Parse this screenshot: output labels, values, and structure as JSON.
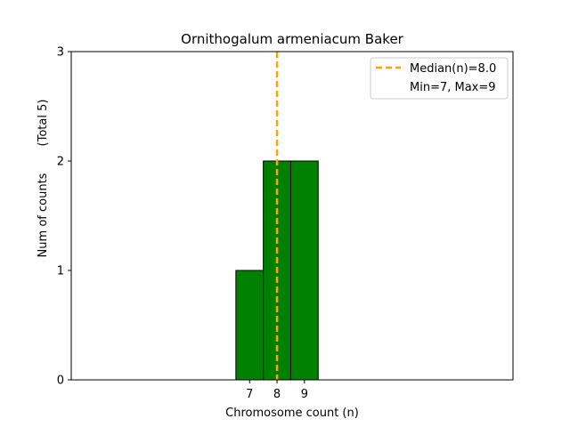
{
  "chart_data": {
    "type": "bar",
    "title": "Ornithogalum armeniacum Baker",
    "xlabel": "Chromosome count (n)",
    "ylabel_left": "Num of counts",
    "ylabel_right": "(Total 5)",
    "categories": [
      7,
      8,
      9
    ],
    "x_tick_labels": [
      "7",
      "8",
      "9"
    ],
    "values": [
      1,
      2,
      2
    ],
    "bar_width": 1,
    "xlim": [
      0.5,
      16.6
    ],
    "ylim": [
      0,
      3
    ],
    "y_ticks": [
      0,
      1,
      2,
      3
    ],
    "y_tick_labels": [
      "0",
      "1",
      "2",
      "3"
    ],
    "baseline_x_range": [
      0.5,
      13.1
    ],
    "median": 8.0,
    "legend_position": "top-right",
    "legend": {
      "median_label": "Median(n)=8.0",
      "minmax_label": "Min=7, Max=9"
    },
    "colors": {
      "bar": "#008000",
      "bar_edge": "#000000",
      "median_line": "#FFA500",
      "axes": "#000000"
    },
    "grid": false
  }
}
